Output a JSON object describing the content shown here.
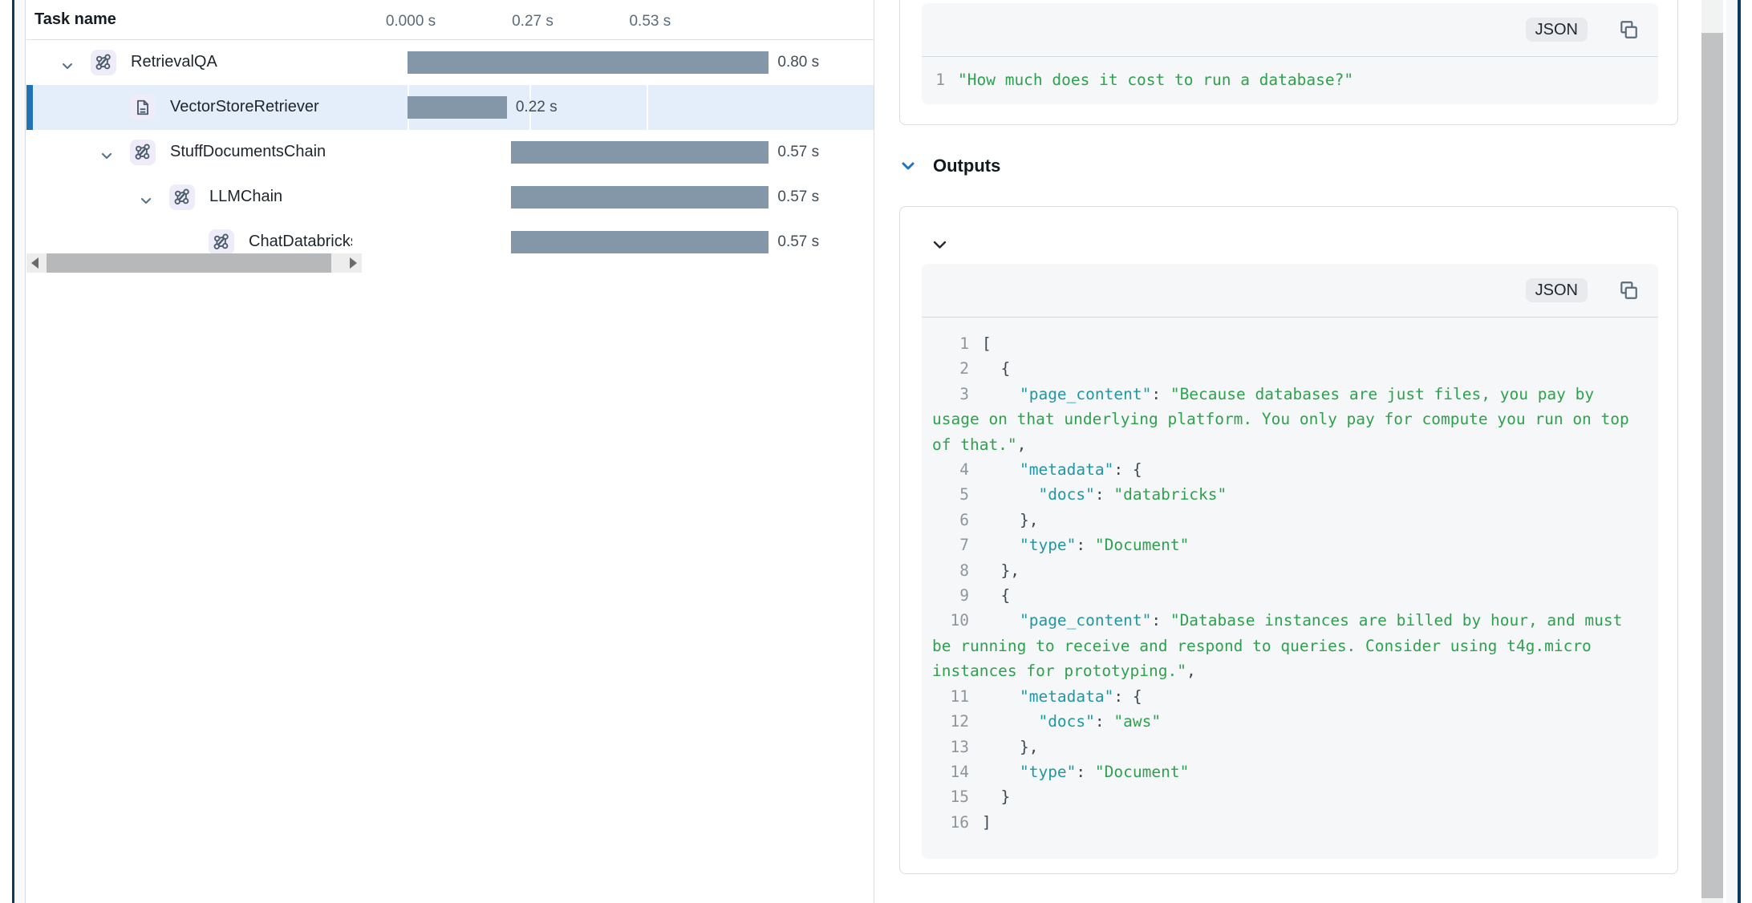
{
  "left_panel": {
    "header": {
      "task_name_label": "Task name"
    },
    "timeline_ticks": [
      {
        "t": 0,
        "label": "0.000 s"
      },
      {
        "t": 0.27,
        "label": "0.27 s"
      },
      {
        "t": 0.53,
        "label": "0.53 s"
      }
    ],
    "rows": [
      {
        "label": "RetrievalQA",
        "icon": "chain",
        "level": 0,
        "chevron": true,
        "selected": false,
        "start_s": 0.0,
        "duration_s": 0.8,
        "duration_label": "0.80 s"
      },
      {
        "label": "VectorStoreRetriever",
        "icon": "document",
        "level": 1,
        "chevron": false,
        "selected": true,
        "start_s": 0.0,
        "duration_s": 0.22,
        "duration_label": "0.22 s"
      },
      {
        "label": "StuffDocumentsChain",
        "icon": "chain",
        "level": 1,
        "chevron": true,
        "selected": false,
        "start_s": 0.23,
        "duration_s": 0.57,
        "duration_label": "0.57 s"
      },
      {
        "label": "LLMChain",
        "icon": "chain",
        "level": 2,
        "chevron": true,
        "selected": false,
        "start_s": 0.23,
        "duration_s": 0.57,
        "duration_label": "0.57 s"
      },
      {
        "label": "ChatDatabricks",
        "icon": "chain",
        "level": 3,
        "chevron": false,
        "selected": false,
        "start_s": 0.23,
        "duration_s": 0.57,
        "duration_label": "0.57 s"
      }
    ]
  },
  "inputs_card": {
    "format_label": "JSON",
    "lines": [
      {
        "num": "1",
        "segments": [
          [
            "s",
            "\"How much does it cost to run a database?\""
          ]
        ]
      }
    ]
  },
  "outputs_section": {
    "title": "Outputs"
  },
  "outputs_card": {
    "format_label": "JSON",
    "lines": [
      {
        "num": "1",
        "segments": [
          [
            "p",
            "["
          ]
        ]
      },
      {
        "num": "2",
        "segments": [
          [
            "p",
            "  {"
          ]
        ]
      },
      {
        "num": "3",
        "segments": [
          [
            "p",
            "    "
          ],
          [
            "k",
            "\"page_content\""
          ],
          [
            "p",
            ": "
          ],
          [
            "s",
            "\"Because databases are just files, you pay by"
          ]
        ]
      },
      {
        "num": null,
        "segments": [
          [
            "s",
            "usage on that underlying platform. You only pay for compute you run on top"
          ]
        ]
      },
      {
        "num": null,
        "segments": [
          [
            "s",
            "of that.\""
          ],
          [
            "p",
            ","
          ]
        ]
      },
      {
        "num": "4",
        "segments": [
          [
            "p",
            "    "
          ],
          [
            "k",
            "\"metadata\""
          ],
          [
            "p",
            ": {"
          ]
        ]
      },
      {
        "num": "5",
        "segments": [
          [
            "p",
            "      "
          ],
          [
            "k",
            "\"docs\""
          ],
          [
            "p",
            ": "
          ],
          [
            "s",
            "\"databricks\""
          ]
        ]
      },
      {
        "num": "6",
        "segments": [
          [
            "p",
            "    },"
          ]
        ]
      },
      {
        "num": "7",
        "segments": [
          [
            "p",
            "    "
          ],
          [
            "k",
            "\"type\""
          ],
          [
            "p",
            ": "
          ],
          [
            "s",
            "\"Document\""
          ]
        ]
      },
      {
        "num": "8",
        "segments": [
          [
            "p",
            "  },"
          ]
        ]
      },
      {
        "num": "9",
        "segments": [
          [
            "p",
            "  {"
          ]
        ]
      },
      {
        "num": "10",
        "segments": [
          [
            "p",
            "    "
          ],
          [
            "k",
            "\"page_content\""
          ],
          [
            "p",
            ": "
          ],
          [
            "s",
            "\"Database instances are billed by hour, and must"
          ]
        ]
      },
      {
        "num": null,
        "segments": [
          [
            "s",
            "be running to receive and respond to queries. Consider using t4g.micro"
          ]
        ]
      },
      {
        "num": null,
        "segments": [
          [
            "s",
            "instances for prototyping.\""
          ],
          [
            "p",
            ","
          ]
        ]
      },
      {
        "num": "11",
        "segments": [
          [
            "p",
            "    "
          ],
          [
            "k",
            "\"metadata\""
          ],
          [
            "p",
            ": {"
          ]
        ]
      },
      {
        "num": "12",
        "segments": [
          [
            "p",
            "      "
          ],
          [
            "k",
            "\"docs\""
          ],
          [
            "p",
            ": "
          ],
          [
            "s",
            "\"aws\""
          ]
        ]
      },
      {
        "num": "13",
        "segments": [
          [
            "p",
            "    },"
          ]
        ]
      },
      {
        "num": "14",
        "segments": [
          [
            "p",
            "    "
          ],
          [
            "k",
            "\"type\""
          ],
          [
            "p",
            ": "
          ],
          [
            "s",
            "\"Document\""
          ]
        ]
      },
      {
        "num": "15",
        "segments": [
          [
            "p",
            "  }"
          ]
        ]
      },
      {
        "num": "16",
        "segments": [
          [
            "p",
            "]"
          ]
        ]
      }
    ]
  },
  "colors": {
    "accent_blue": "#2273b5",
    "bar": "#8497a9",
    "selected_row_bg": "#e4eefa",
    "json_key": "#2097a3",
    "json_string": "#2fa14e",
    "splitter_navy": "#0d3a5f"
  }
}
